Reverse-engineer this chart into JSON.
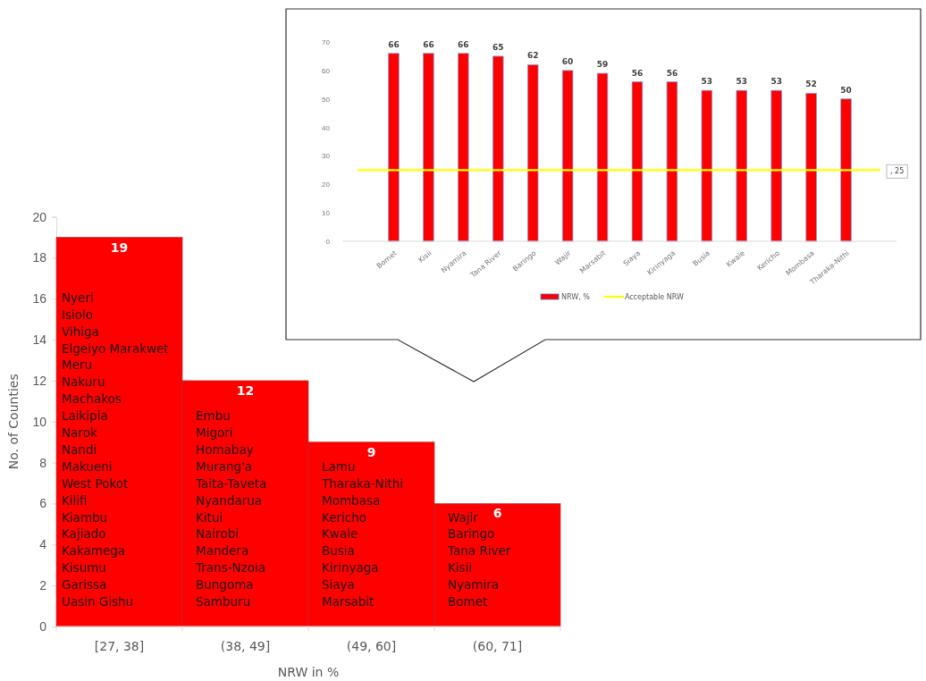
{
  "chart_data": [
    {
      "type": "bar",
      "categories": [
        "Bomet",
        "Kisii",
        "Nyamira",
        "Tana River",
        "Baringo",
        "Wajir",
        "Marsabit",
        "Siaya",
        "Kirinyaga",
        "Busia",
        "Kwale",
        "Kericho",
        "Mombasa",
        "Tharaka-Nithi"
      ],
      "series": [
        {
          "name": "NRW, %",
          "color": "#ff0000",
          "values": [
            66,
            66,
            66,
            65,
            62,
            60,
            59,
            56,
            56,
            53,
            53,
            53,
            52,
            50
          ]
        }
      ],
      "ylim": [
        0,
        70
      ],
      "yticks": [
        0,
        10,
        20,
        30,
        40,
        50,
        60,
        70
      ],
      "data_labels": true,
      "grid": false,
      "legend": "bottom",
      "ref_lines": [
        {
          "axis": "y",
          "value": 25,
          "label": "Acceptable NRW",
          "color": "#ffff00"
        }
      ],
      "annotations": [
        ", 25"
      ]
    },
    {
      "type": "bar",
      "categories": [
        "[27, 38]",
        "(38, 49]",
        "(49, 60]",
        "(60, 71]"
      ],
      "values": [
        19,
        12,
        9,
        6
      ],
      "color": "#ff0000",
      "xlabel": "NRW in %",
      "ylabel": "No. of Counties",
      "ylim": [
        0,
        20
      ],
      "yticks": [
        0,
        2,
        4,
        6,
        8,
        10,
        12,
        14,
        16,
        18,
        20
      ],
      "data_labels": true,
      "grid": false,
      "annotations": [
        "Nyeri\nIsiolo\nVihiga\nElgeiyo Marakwet\nMeru\nNakuru\nMachakos\nLaikipia\nNarok\nNandi\nMakueni\nWest Pokot\nKilifi\nKiambu\nKajiado\nKakamega\nKisumu\nGarissa\nUasin Gishu",
        "Embu\nMigori\nHomabay\nMurang'a\nTaita-Taveta\nNyandarua\nKitui\nNairobi\nMandera\nTrans-Nzoia\nBungoma\nSamburu",
        "Lamu\nTharaka-Nithi\nMombasa\nKericho\nKwale\nBusia\nKirinyaga\nSiaya\nMarsabit",
        "Wajir\nBaringo\nTana River\nKisii\nNyamira\nBomet"
      ]
    }
  ]
}
